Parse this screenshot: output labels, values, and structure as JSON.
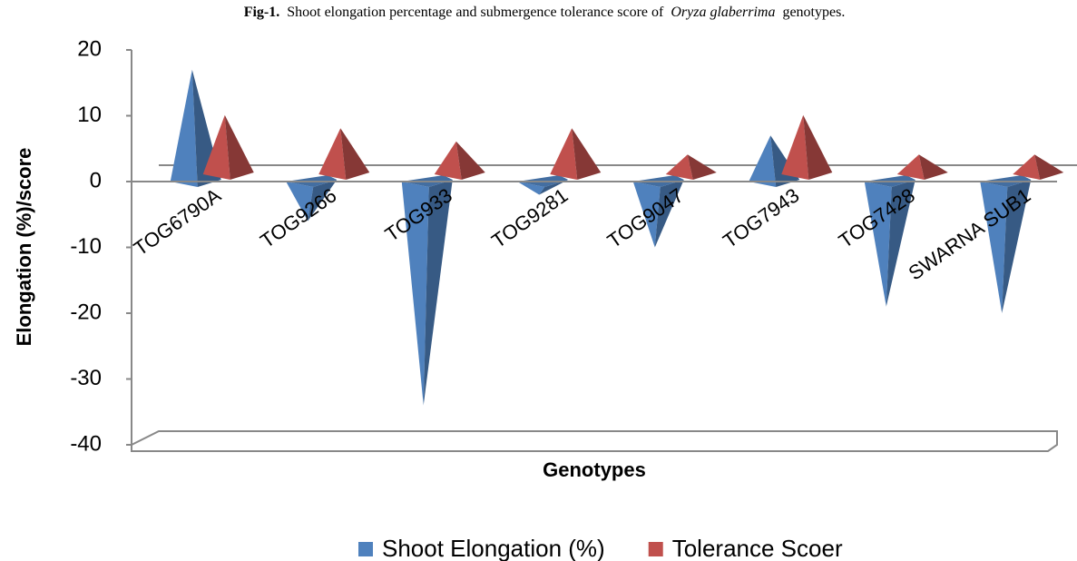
{
  "chart_data": {
    "type": "pyramid",
    "title_parts": [
      "Fig-1.",
      "Shoot elongation percentage and submergence tolerance score of",
      "Oryza glaberrima",
      "genotypes."
    ],
    "y_label": "Elongation (%)/score",
    "x_label": "Genotypes",
    "categories": [
      "TOG6790A",
      "TOG9266",
      "TOG933",
      "TOG9281",
      "TOG9047",
      "TOG7943",
      "TOG7428",
      "SWARNA SUB1"
    ],
    "series": [
      {
        "name": "Shoot Elongation (%)",
        "color": "#4f81bd",
        "values": [
          17,
          -6,
          -34,
          -2,
          -10,
          7,
          -19,
          -20
        ]
      },
      {
        "name": "Tolerance Scoer",
        "color": "#c0504d",
        "values": [
          9,
          7,
          5,
          7,
          3,
          9,
          3,
          3
        ]
      }
    ],
    "ylim": [
      -40,
      20
    ],
    "yticks": [
      -40,
      -30,
      -20,
      -10,
      0,
      10,
      20
    ],
    "legend": "bottom"
  }
}
